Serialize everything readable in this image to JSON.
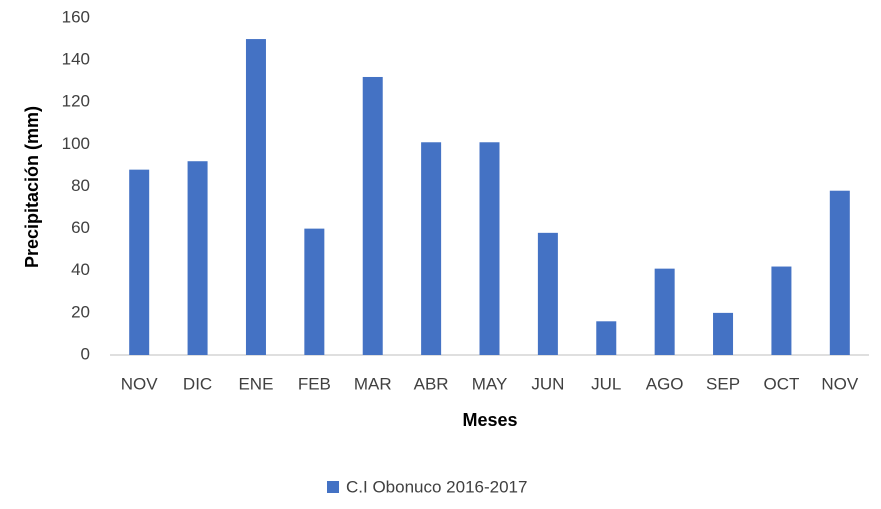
{
  "chart_data": {
    "type": "bar",
    "x_label": "Meses",
    "y_label": "Precipitación (mm)",
    "categories": [
      "NOV",
      "DIC",
      "ENE",
      "FEB",
      "MAR",
      "ABR",
      "MAY",
      "JUN",
      "JUL",
      "AGO",
      "SEP",
      "OCT",
      "NOV"
    ],
    "series": [
      {
        "name": "C.I Obonuco 2016-2017",
        "color": "#4472c4",
        "values": [
          88,
          92,
          150,
          60,
          132,
          101,
          101,
          58,
          16,
          41,
          20,
          42,
          78
        ]
      }
    ],
    "ylim": [
      0,
      160
    ],
    "yticks": [
      0,
      20,
      40,
      60,
      80,
      100,
      120,
      140,
      160
    ],
    "grid": false,
    "legend": "bottom"
  }
}
